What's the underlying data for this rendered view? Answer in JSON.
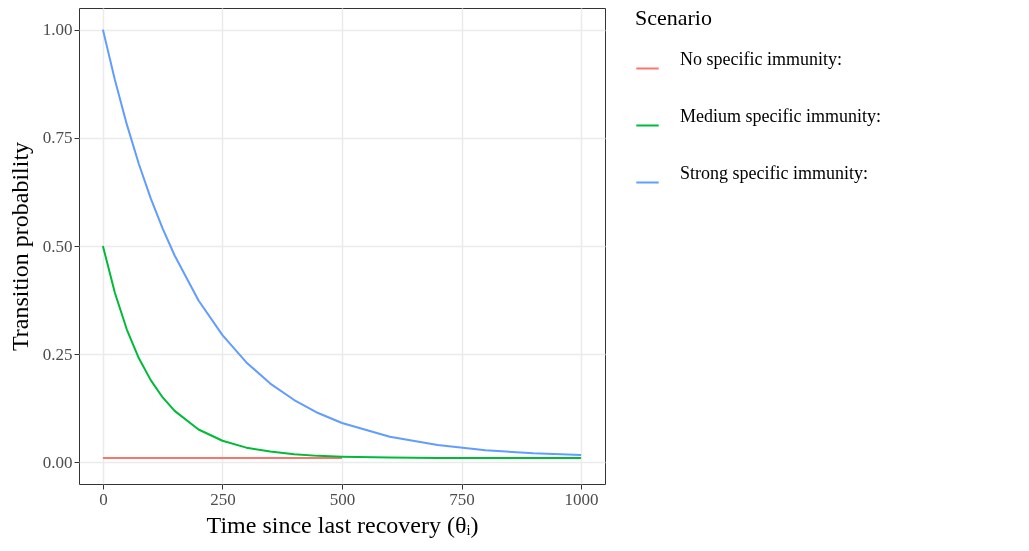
{
  "chart_data": {
    "type": "line",
    "xlabel": "Time since last recovery (θᵢ)",
    "ylabel": "Transition probability",
    "legend_title": "Scenario",
    "legend": "right",
    "grid": true,
    "x": [
      0,
      25,
      50,
      75,
      100,
      125,
      150,
      200,
      250,
      300,
      350,
      400,
      450,
      500,
      600,
      700,
      800,
      900,
      1000
    ],
    "xlim": [
      -50,
      1050
    ],
    "xticks": [
      0,
      250,
      500,
      750,
      1000
    ],
    "ylim": [
      -0.05,
      1.05
    ],
    "yticks": [
      {
        "value": 0,
        "label": "0.00"
      },
      {
        "value": 0.25,
        "label": "0.25"
      },
      {
        "value": 0.5,
        "label": "0.50"
      },
      {
        "value": 0.75,
        "label": "0.75"
      },
      {
        "value": 1,
        "label": "1.00"
      }
    ],
    "series": [
      {
        "name": "No specific immunity:",
        "color": "#f8766d",
        "values": [
          0.01,
          0.01,
          0.01,
          0.01,
          0.01,
          0.01,
          0.01,
          0.01,
          0.01,
          0.01,
          0.01,
          0.01,
          0.01,
          0.01,
          null,
          null,
          null,
          null,
          null
        ]
      },
      {
        "name": "Medium specific immunity:",
        "color": "#00ba38",
        "values": [
          0.5,
          0.392,
          0.307,
          0.241,
          0.19,
          0.15,
          0.119,
          0.076,
          0.05,
          0.034,
          0.025,
          0.019,
          0.015,
          0.013,
          0.011,
          0.01,
          0.01,
          0.01,
          0.01
        ]
      },
      {
        "name": "Strong specific immunity:",
        "color": "#619cff",
        "values": [
          1,
          0.884,
          0.781,
          0.69,
          0.61,
          0.54,
          0.478,
          0.374,
          0.294,
          0.231,
          0.182,
          0.144,
          0.114,
          0.091,
          0.059,
          0.04,
          0.028,
          0.021,
          0.017
        ]
      }
    ]
  }
}
